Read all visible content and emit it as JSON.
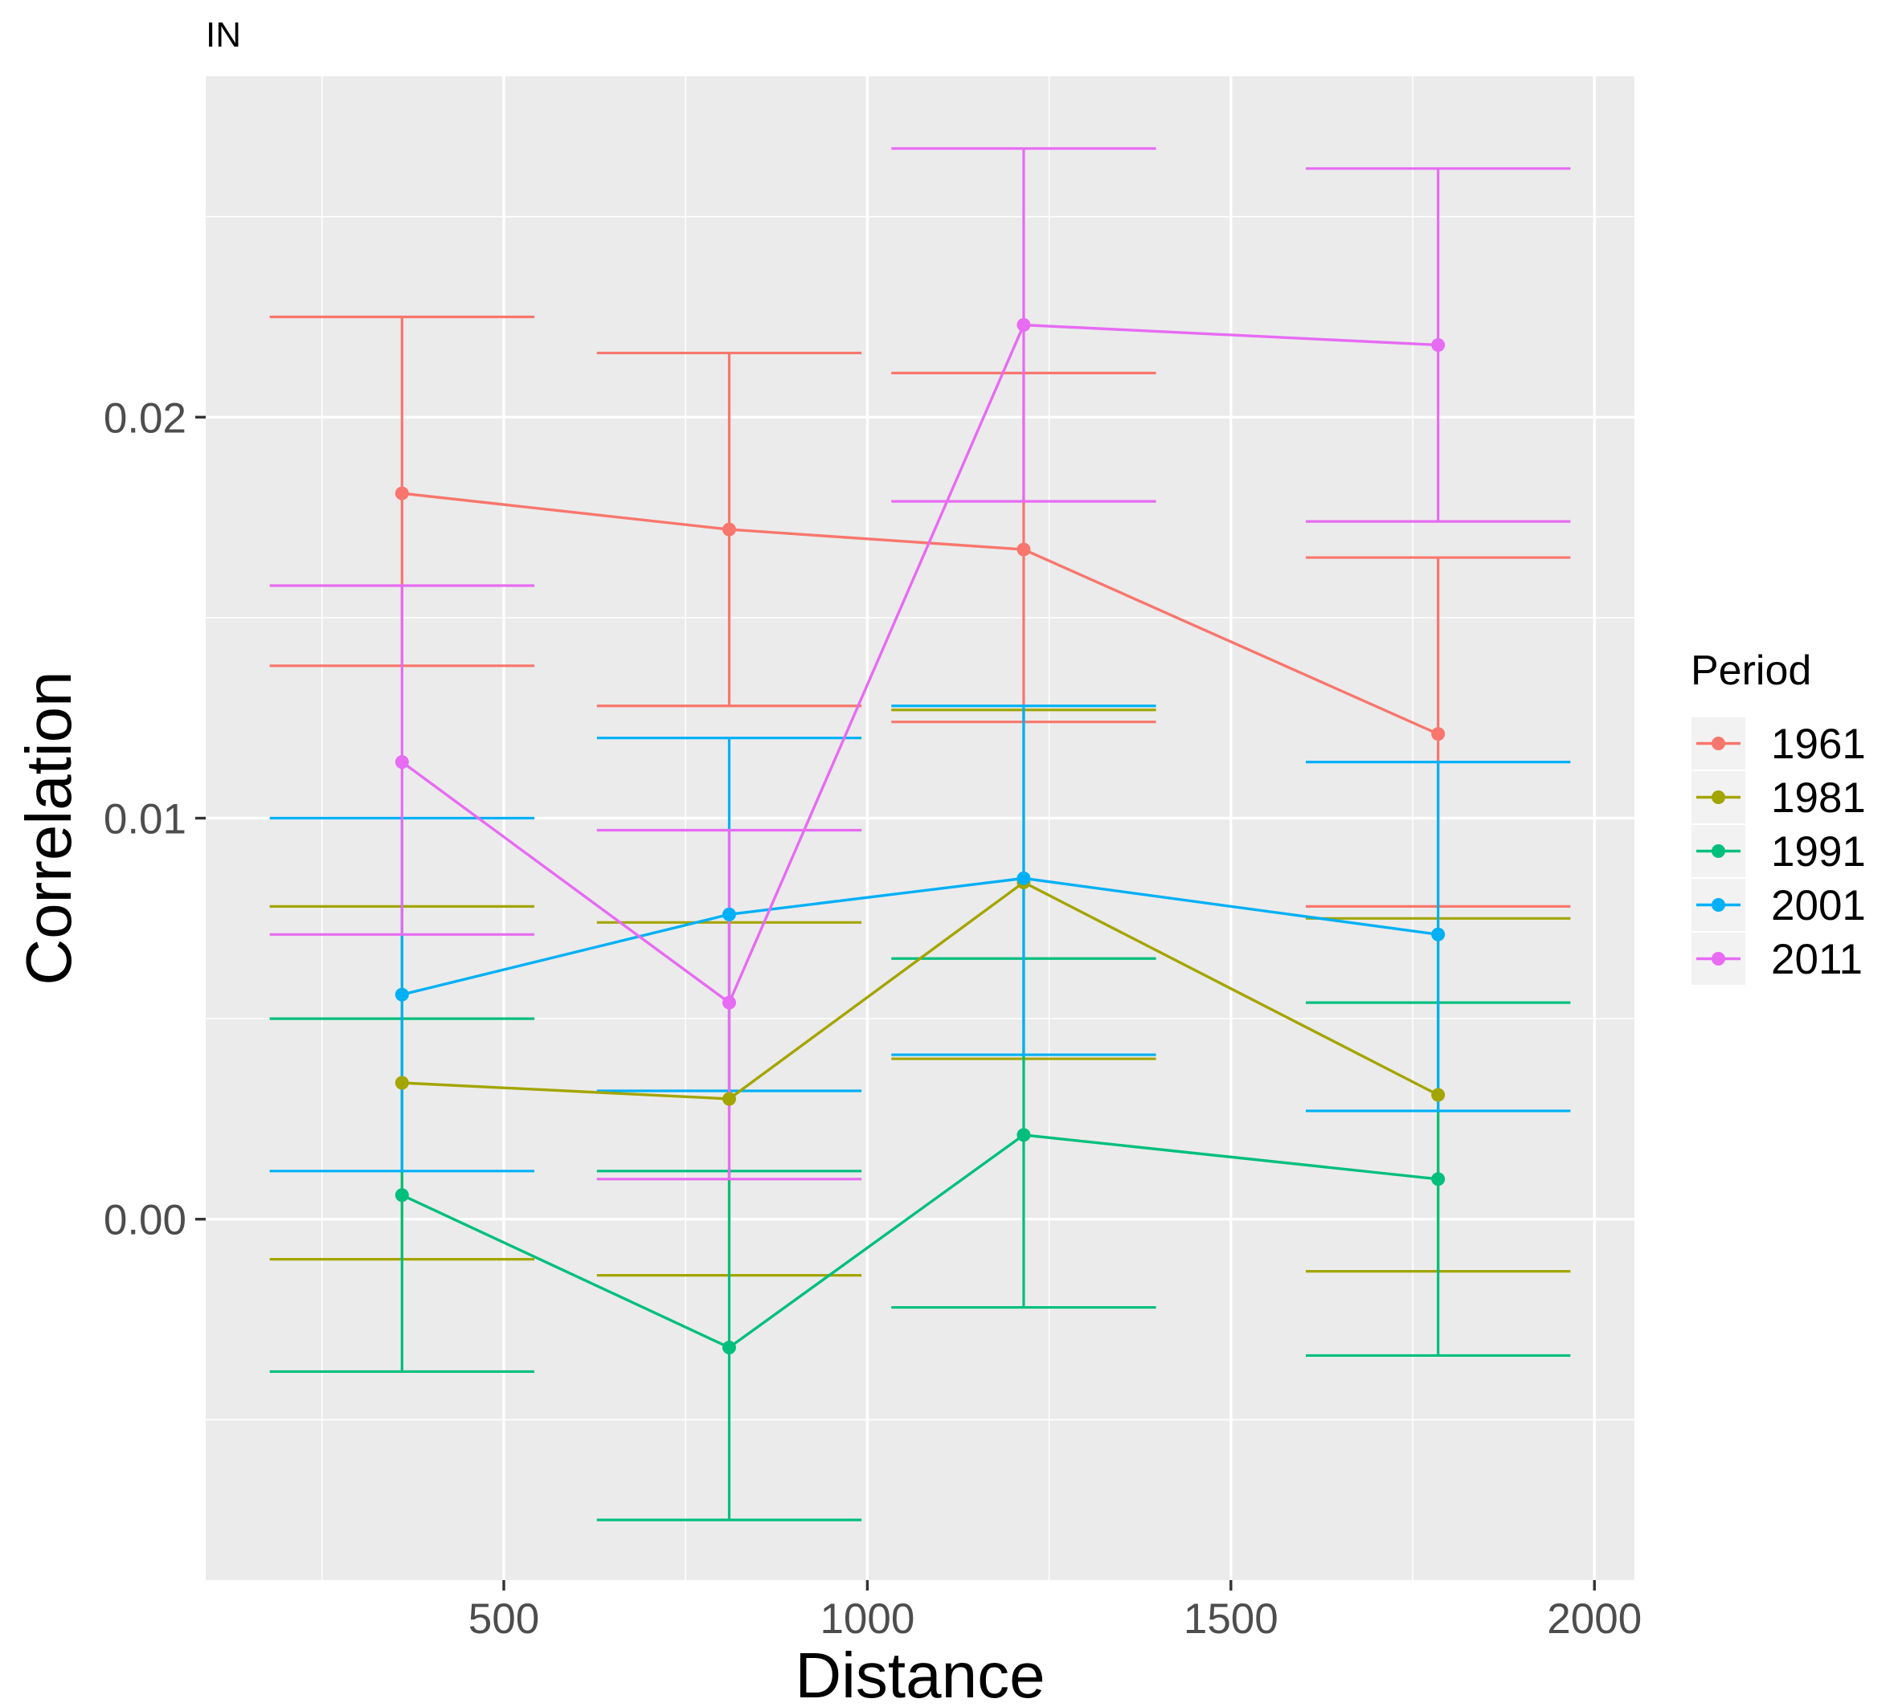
{
  "chart_data": {
    "type": "line",
    "title": "IN",
    "xlabel": "Distance",
    "ylabel": "Correlation",
    "xlim": [
      90,
      2055
    ],
    "ylim": [
      -0.009,
      0.0285
    ],
    "x_ticks": [
      500,
      1000,
      1500,
      2000
    ],
    "x_tick_labels": [
      "500",
      "1000",
      "1500",
      "2000"
    ],
    "y_ticks": [
      0.0,
      0.01,
      0.02
    ],
    "y_tick_labels": [
      "0.00",
      "0.01",
      "0.02"
    ],
    "x": [
      360,
      810,
      1215,
      1785
    ],
    "grid": true,
    "errorbar_halfwidth": 182,
    "legend": {
      "title": "Period",
      "position": "right"
    },
    "series": [
      {
        "name": "1961",
        "color": "#F8766D",
        "values": [
          0.0181,
          0.0172,
          0.0167,
          0.0121
        ],
        "lower": [
          0.0138,
          0.0128,
          0.0124,
          0.0078
        ],
        "upper": [
          0.0225,
          0.0216,
          0.0211,
          0.0165
        ]
      },
      {
        "name": "1981",
        "color": "#A3A500",
        "values": [
          0.0034,
          0.003,
          0.0084,
          0.0031
        ],
        "lower": [
          -0.001,
          -0.0014,
          0.004,
          -0.0013
        ],
        "upper": [
          0.0078,
          0.0074,
          0.0127,
          0.0075
        ]
      },
      {
        "name": "1991",
        "color": "#00BF7D",
        "values": [
          0.0006,
          -0.0032,
          0.0021,
          0.001
        ],
        "lower": [
          -0.0038,
          -0.0075,
          -0.0022,
          -0.0034
        ],
        "upper": [
          0.005,
          0.0012,
          0.0065,
          0.0054
        ]
      },
      {
        "name": "2001",
        "color": "#00B0F6",
        "values": [
          0.0056,
          0.0076,
          0.0085,
          0.0071
        ],
        "lower": [
          0.0012,
          0.0032,
          0.0041,
          0.0027
        ],
        "upper": [
          0.01,
          0.012,
          0.0128,
          0.0114
        ]
      },
      {
        "name": "2011",
        "color": "#E76BF3",
        "values": [
          0.0114,
          0.0054,
          0.0223,
          0.0218
        ],
        "lower": [
          0.0071,
          0.001,
          0.0179,
          0.0174
        ],
        "upper": [
          0.0158,
          0.0097,
          0.0267,
          0.0262
        ]
      }
    ]
  }
}
